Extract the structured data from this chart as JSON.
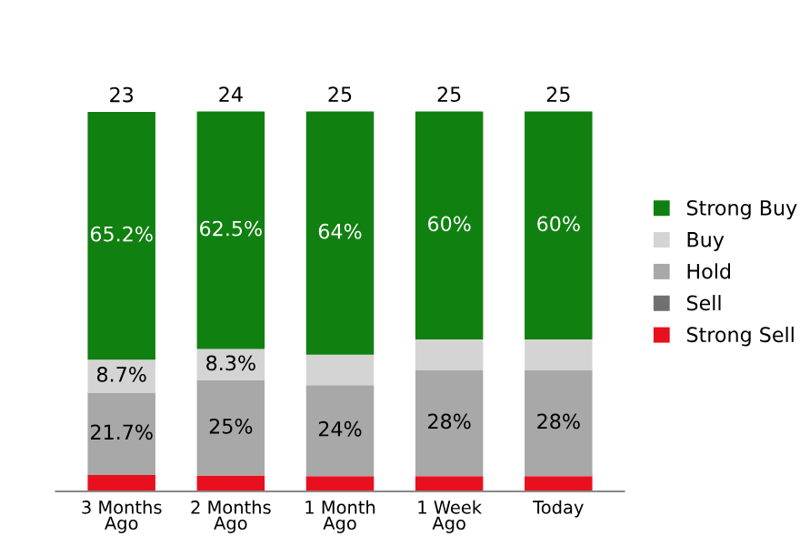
{
  "chart_data": {
    "type": "bar",
    "stacked": true,
    "categories": [
      "3 Months\nAgo",
      "2 Months\nAgo",
      "1 Month\nAgo",
      "1 Week\nAgo",
      "Today"
    ],
    "series": [
      {
        "name": "Strong Sell",
        "color": "#e8101e",
        "values": [
          4.3,
          4.2,
          4,
          4,
          4
        ],
        "value_labels": [
          null,
          null,
          null,
          null,
          null
        ]
      },
      {
        "name": "Sell",
        "color": "#707070",
        "values": [
          0,
          0,
          0,
          0,
          0
        ],
        "value_labels": [
          null,
          null,
          null,
          null,
          null
        ]
      },
      {
        "name": "Hold",
        "color": "#a8a8a8",
        "values": [
          21.7,
          25,
          24,
          28,
          28
        ],
        "value_labels": [
          "21.7%",
          "25%",
          "24%",
          "28%",
          "28%"
        ]
      },
      {
        "name": "Buy",
        "color": "#d4d4d4",
        "values": [
          8.7,
          8.3,
          8,
          8,
          8
        ],
        "value_labels": [
          "8.7%",
          "8.3%",
          null,
          null,
          null
        ]
      },
      {
        "name": "Strong Buy",
        "color": "#108010",
        "values": [
          65.2,
          62.5,
          64,
          60,
          60
        ],
        "value_labels": [
          "65.2%",
          "62.5%",
          "64%",
          "60%",
          "60%"
        ]
      }
    ],
    "annotations": [
      {
        "text": "23",
        "x": "3 Months\nAgo",
        "y": 99.9
      },
      {
        "text": "24",
        "x": "2 Months\nAgo",
        "y": 100
      },
      {
        "text": "25",
        "x": "1 Month\nAgo",
        "y": 100
      },
      {
        "text": "25",
        "x": "1 Week\nAgo",
        "y": 100
      },
      {
        "text": "25",
        "x": "Today",
        "y": 100
      }
    ],
    "tick_labels": "x",
    "legend": "right",
    "grid": false
  }
}
